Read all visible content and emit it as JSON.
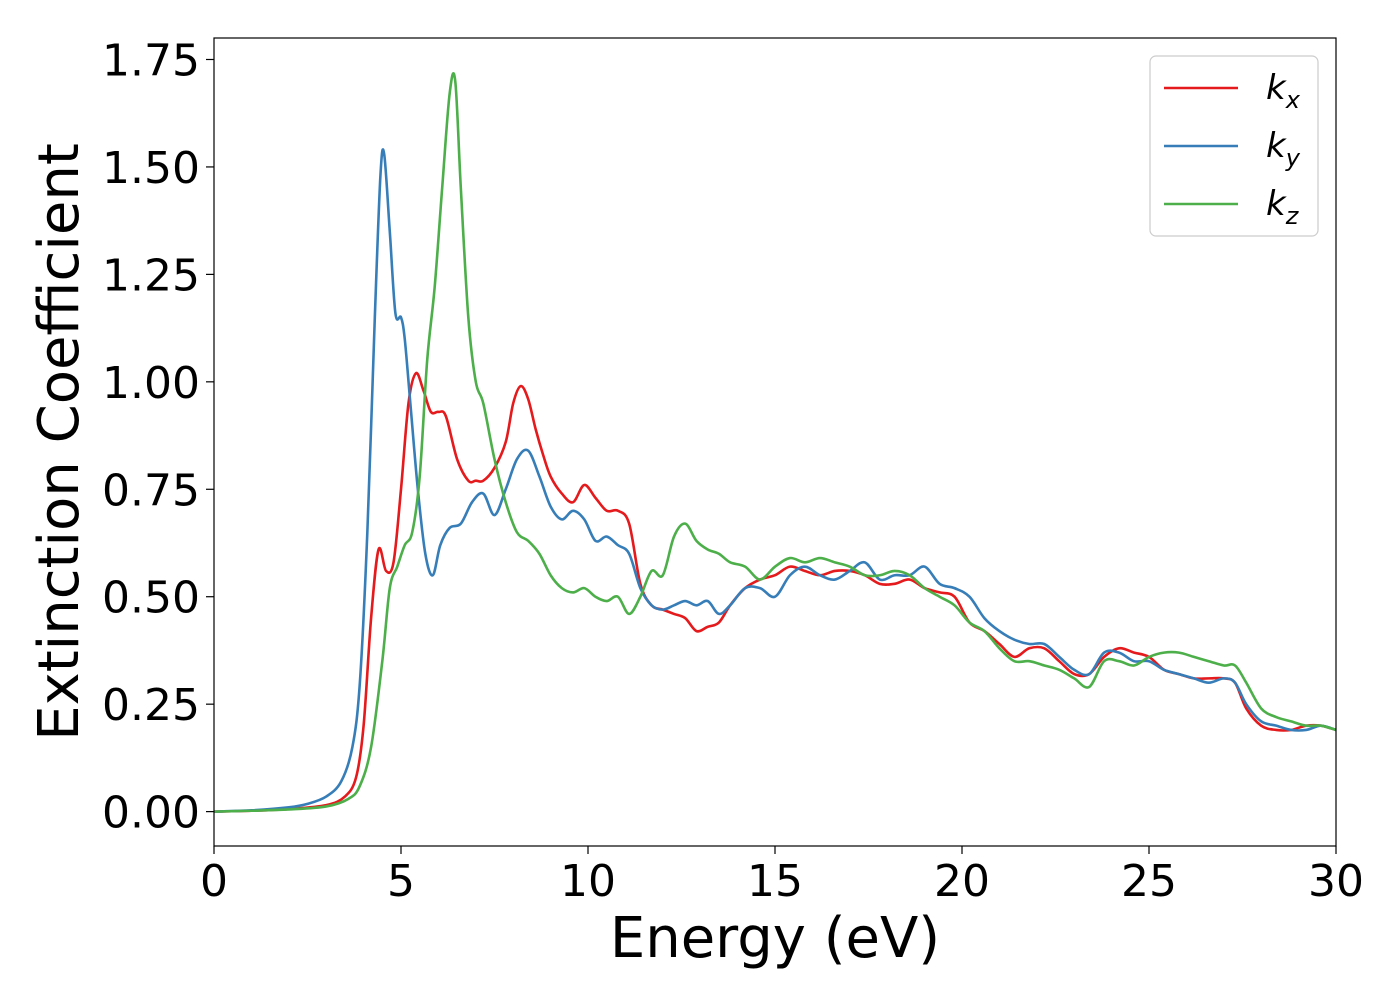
{
  "chart_data": {
    "type": "line",
    "title": "",
    "xlabel": "Energy (eV)",
    "ylabel": "Extinction Coefficient",
    "xlim": [
      0,
      30
    ],
    "ylim": [
      -0.08,
      1.8
    ],
    "x_ticks": [
      0,
      5,
      10,
      15,
      20,
      25,
      30
    ],
    "x_tick_labels": [
      "0",
      "5",
      "10",
      "15",
      "20",
      "25",
      "30"
    ],
    "y_ticks": [
      0.0,
      0.25,
      0.5,
      0.75,
      1.0,
      1.25,
      1.5,
      1.75
    ],
    "y_tick_labels": [
      "0.00",
      "0.25",
      "0.50",
      "0.75",
      "1.00",
      "1.25",
      "1.50",
      "1.75"
    ],
    "grid": false,
    "legend_position": "top-right",
    "series": [
      {
        "name": "k",
        "subscript": "x",
        "color": "#e41a1c",
        "x": [
          0,
          1,
          2,
          3,
          3.5,
          3.8,
          4.0,
          4.2,
          4.4,
          4.6,
          4.8,
          5.0,
          5.2,
          5.4,
          5.6,
          5.8,
          6.0,
          6.2,
          6.5,
          6.8,
          7.0,
          7.2,
          7.5,
          7.8,
          8.0,
          8.2,
          8.4,
          8.6,
          8.8,
          9.0,
          9.3,
          9.6,
          9.9,
          10.2,
          10.5,
          10.8,
          11.1,
          11.4,
          11.7,
          12.0,
          12.3,
          12.6,
          12.9,
          13.2,
          13.5,
          13.8,
          14.2,
          14.6,
          15.0,
          15.4,
          15.8,
          16.2,
          16.6,
          17.0,
          17.4,
          17.8,
          18.2,
          18.6,
          19.0,
          19.4,
          19.8,
          20.2,
          20.6,
          21.0,
          21.4,
          21.8,
          22.2,
          22.6,
          23.0,
          23.4,
          23.8,
          24.2,
          24.6,
          25.0,
          25.4,
          25.8,
          26.2,
          26.6,
          27.0,
          27.3,
          27.6,
          28.0,
          28.4,
          28.8,
          29.2,
          29.6,
          30
        ],
        "y": [
          0,
          0.002,
          0.006,
          0.015,
          0.035,
          0.08,
          0.2,
          0.45,
          0.61,
          0.56,
          0.58,
          0.75,
          0.95,
          1.02,
          0.98,
          0.93,
          0.93,
          0.92,
          0.82,
          0.77,
          0.77,
          0.77,
          0.8,
          0.86,
          0.95,
          0.99,
          0.96,
          0.89,
          0.83,
          0.78,
          0.74,
          0.72,
          0.76,
          0.73,
          0.7,
          0.7,
          0.67,
          0.53,
          0.48,
          0.47,
          0.46,
          0.45,
          0.42,
          0.43,
          0.44,
          0.48,
          0.52,
          0.54,
          0.55,
          0.57,
          0.56,
          0.55,
          0.56,
          0.56,
          0.55,
          0.53,
          0.53,
          0.54,
          0.52,
          0.51,
          0.5,
          0.44,
          0.42,
          0.39,
          0.36,
          0.38,
          0.38,
          0.35,
          0.32,
          0.32,
          0.36,
          0.38,
          0.37,
          0.36,
          0.33,
          0.32,
          0.31,
          0.31,
          0.31,
          0.3,
          0.24,
          0.2,
          0.19,
          0.19,
          0.2,
          0.2,
          0.19
        ]
      },
      {
        "name": "k",
        "subscript": "y",
        "color": "#377eb8",
        "x": [
          0,
          1,
          2,
          2.5,
          3.0,
          3.4,
          3.7,
          3.9,
          4.1,
          4.3,
          4.45,
          4.55,
          4.7,
          4.85,
          5.0,
          5.1,
          5.25,
          5.45,
          5.65,
          5.85,
          6.05,
          6.3,
          6.6,
          6.9,
          7.2,
          7.5,
          7.8,
          8.1,
          8.4,
          8.7,
          9.0,
          9.3,
          9.6,
          9.9,
          10.2,
          10.5,
          10.8,
          11.1,
          11.4,
          11.7,
          12.0,
          12.3,
          12.6,
          12.9,
          13.2,
          13.5,
          13.8,
          14.2,
          14.6,
          15.0,
          15.4,
          15.8,
          16.2,
          16.6,
          17.0,
          17.4,
          17.8,
          18.2,
          18.6,
          19.0,
          19.4,
          19.8,
          20.2,
          20.6,
          21.0,
          21.4,
          21.8,
          22.2,
          22.6,
          23.0,
          23.4,
          23.8,
          24.2,
          24.6,
          25.0,
          25.4,
          25.8,
          26.2,
          26.6,
          27.0,
          27.3,
          27.6,
          28.0,
          28.4,
          28.8,
          29.2,
          29.6,
          30
        ],
        "y": [
          0,
          0.003,
          0.01,
          0.018,
          0.035,
          0.07,
          0.15,
          0.3,
          0.65,
          1.15,
          1.48,
          1.53,
          1.35,
          1.16,
          1.15,
          1.1,
          0.95,
          0.75,
          0.6,
          0.55,
          0.62,
          0.66,
          0.67,
          0.72,
          0.74,
          0.69,
          0.75,
          0.82,
          0.84,
          0.78,
          0.71,
          0.68,
          0.7,
          0.68,
          0.63,
          0.64,
          0.62,
          0.6,
          0.52,
          0.48,
          0.47,
          0.48,
          0.49,
          0.48,
          0.49,
          0.46,
          0.48,
          0.52,
          0.52,
          0.5,
          0.55,
          0.57,
          0.55,
          0.54,
          0.56,
          0.58,
          0.54,
          0.55,
          0.55,
          0.57,
          0.53,
          0.52,
          0.5,
          0.45,
          0.42,
          0.4,
          0.39,
          0.39,
          0.36,
          0.33,
          0.32,
          0.37,
          0.37,
          0.35,
          0.35,
          0.33,
          0.32,
          0.31,
          0.3,
          0.31,
          0.3,
          0.25,
          0.21,
          0.2,
          0.19,
          0.19,
          0.2,
          0.19
        ]
      },
      {
        "name": "k",
        "subscript": "z",
        "color": "#4daf4a",
        "x": [
          0,
          1,
          2,
          3,
          3.6,
          3.9,
          4.2,
          4.5,
          4.7,
          4.9,
          5.1,
          5.3,
          5.5,
          5.7,
          5.9,
          6.1,
          6.3,
          6.45,
          6.6,
          6.8,
          7.0,
          7.2,
          7.5,
          7.8,
          8.1,
          8.4,
          8.7,
          9.0,
          9.3,
          9.6,
          9.9,
          10.2,
          10.5,
          10.8,
          11.1,
          11.4,
          11.7,
          12.0,
          12.3,
          12.6,
          12.9,
          13.2,
          13.5,
          13.8,
          14.2,
          14.6,
          15.0,
          15.4,
          15.8,
          16.2,
          16.6,
          17.0,
          17.4,
          17.8,
          18.2,
          18.6,
          19.0,
          19.4,
          19.8,
          20.2,
          20.6,
          21.0,
          21.4,
          21.8,
          22.2,
          22.6,
          23.0,
          23.4,
          23.8,
          24.2,
          24.6,
          25.0,
          25.4,
          25.8,
          26.2,
          26.6,
          27.0,
          27.3,
          27.6,
          28.0,
          28.4,
          28.8,
          29.2,
          29.6,
          30
        ],
        "y": [
          0,
          0.002,
          0.005,
          0.012,
          0.03,
          0.06,
          0.15,
          0.35,
          0.52,
          0.57,
          0.62,
          0.65,
          0.78,
          1.05,
          1.22,
          1.45,
          1.67,
          1.7,
          1.45,
          1.15,
          1.0,
          0.95,
          0.82,
          0.72,
          0.65,
          0.63,
          0.6,
          0.55,
          0.52,
          0.51,
          0.52,
          0.5,
          0.49,
          0.5,
          0.46,
          0.5,
          0.56,
          0.55,
          0.64,
          0.67,
          0.63,
          0.61,
          0.6,
          0.58,
          0.57,
          0.54,
          0.57,
          0.59,
          0.58,
          0.59,
          0.58,
          0.57,
          0.55,
          0.55,
          0.56,
          0.55,
          0.52,
          0.5,
          0.48,
          0.44,
          0.42,
          0.38,
          0.35,
          0.35,
          0.34,
          0.33,
          0.31,
          0.29,
          0.35,
          0.35,
          0.34,
          0.36,
          0.37,
          0.37,
          0.36,
          0.35,
          0.34,
          0.34,
          0.3,
          0.24,
          0.22,
          0.21,
          0.2,
          0.2,
          0.19
        ]
      }
    ]
  }
}
